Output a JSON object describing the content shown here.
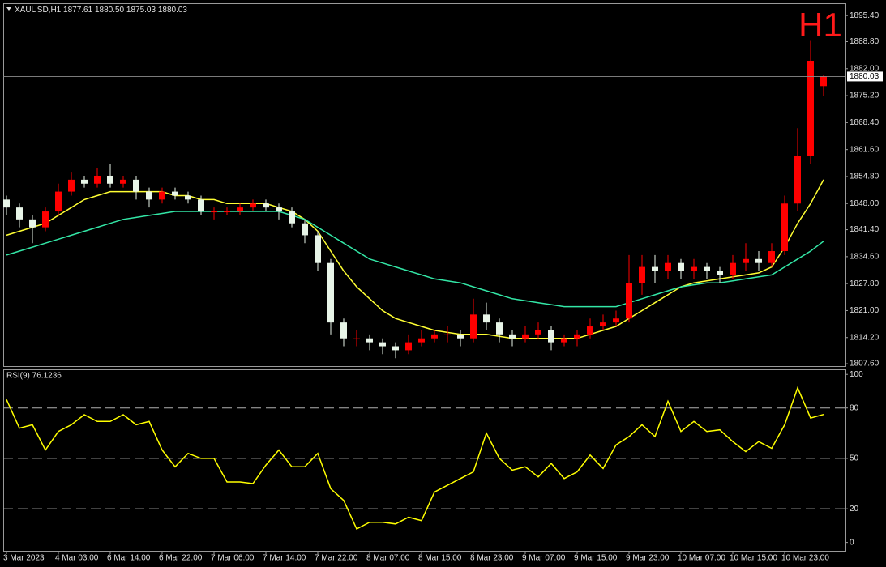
{
  "chart_data": [
    {
      "type": "candlestick",
      "symbol": "XAUUSD,H1",
      "header_ohlc": [
        "1877.61",
        "1880.50",
        "1875.03",
        "1880.03"
      ],
      "timeframe": "H1",
      "categories": [
        "3 Mar 2023",
        null,
        null,
        null,
        "4 Mar 03:00",
        null,
        null,
        null,
        "6 Mar 14:00",
        null,
        null,
        null,
        "6 Mar 22:00",
        null,
        null,
        null,
        "7 Mar 06:00",
        null,
        null,
        null,
        "7 Mar 14:00",
        null,
        null,
        null,
        "7 Mar 22:00",
        null,
        null,
        null,
        "8 Mar 07:00",
        null,
        null,
        null,
        "8 Mar 15:00",
        null,
        null,
        null,
        "8 Mar 23:00",
        null,
        null,
        null,
        "9 Mar 07:00",
        null,
        null,
        null,
        "9 Mar 15:00",
        null,
        null,
        null,
        "9 Mar 23:00",
        null,
        null,
        null,
        "10 Mar 07:00",
        null,
        null,
        null,
        "10 Mar 15:00",
        null,
        null,
        null,
        "10 Mar 23:00",
        null,
        null,
        null
      ],
      "open": [
        1849,
        1847,
        1844,
        1842,
        1846,
        1851,
        1854,
        1853,
        1855,
        1853,
        1854,
        1851,
        1849,
        1851,
        1850,
        1849,
        1846,
        1846,
        1846,
        1847,
        1848,
        1847,
        1846,
        1843,
        1840,
        1833,
        1818,
        1814,
        1814,
        1813,
        1812,
        1811,
        1813,
        1814,
        1815,
        1815,
        1814,
        1820,
        1818,
        1815,
        1814,
        1815,
        1816,
        1813,
        1814,
        1815,
        1817,
        1818,
        1819,
        1828,
        1832,
        1831,
        1833,
        1831,
        1832,
        1831,
        1830,
        1833,
        1834,
        1833,
        1836,
        1848,
        1860,
        1877.61
      ],
      "high": [
        1850,
        1848,
        1845,
        1847,
        1853,
        1856,
        1855,
        1857,
        1858,
        1855,
        1855,
        1852,
        1852,
        1852,
        1851,
        1850,
        1847,
        1847,
        1848,
        1849,
        1849,
        1848,
        1847,
        1844,
        1841,
        1834,
        1819,
        1816,
        1815,
        1814,
        1813,
        1815,
        1816,
        1816,
        1817,
        1816,
        1824,
        1823,
        1819,
        1816,
        1817,
        1818,
        1817,
        1815,
        1816,
        1819,
        1820,
        1821,
        1835,
        1835,
        1835,
        1835,
        1834,
        1834,
        1833,
        1832,
        1835,
        1838,
        1836,
        1838,
        1850,
        1867,
        1889,
        1880.5
      ],
      "low": [
        1845,
        1842,
        1838,
        1841,
        1845,
        1850,
        1852,
        1852,
        1852,
        1852,
        1849,
        1847,
        1848,
        1849,
        1848,
        1845,
        1844,
        1845,
        1845,
        1846,
        1846,
        1844,
        1842,
        1838,
        1831,
        1815,
        1812,
        1812,
        1811,
        1810,
        1809,
        1810,
        1812,
        1813,
        1813,
        1812,
        1813,
        1816,
        1813,
        1812,
        1813,
        1814,
        1811,
        1812,
        1812,
        1814,
        1816,
        1817,
        1818,
        1825,
        1828,
        1829,
        1829,
        1829,
        1829,
        1828,
        1829,
        1831,
        1831,
        1832,
        1835,
        1846,
        1858,
        1875.03
      ],
      "close": [
        1847,
        1844,
        1842,
        1846,
        1851,
        1854,
        1853,
        1855,
        1853,
        1854,
        1851,
        1849,
        1851,
        1850,
        1849,
        1846,
        1846,
        1846,
        1847,
        1848,
        1847,
        1846,
        1843,
        1840,
        1833,
        1818,
        1814,
        1814,
        1813,
        1812,
        1811,
        1813,
        1814,
        1815,
        1815,
        1814,
        1820,
        1818,
        1815,
        1814,
        1815,
        1816,
        1813,
        1814,
        1815,
        1817,
        1818,
        1819,
        1828,
        1832,
        1831,
        1833,
        1831,
        1832,
        1831,
        1830,
        1833,
        1834,
        1833,
        1836,
        1848,
        1860,
        1884,
        1880.03
      ],
      "up_color": "#ff0000",
      "down_color": "#e8f5e8",
      "moving_averages": [
        {
          "color": "#ffff33",
          "values": [
            1840,
            1841,
            1842,
            1843,
            1845,
            1847,
            1849,
            1850,
            1851,
            1851,
            1851,
            1851,
            1851,
            1850,
            1850,
            1849,
            1849,
            1848,
            1848,
            1848,
            1848,
            1847,
            1846,
            1844,
            1841,
            1836,
            1831,
            1827,
            1824,
            1821,
            1819,
            1818,
            1817,
            1816,
            1815.5,
            1815,
            1815,
            1815,
            1814.5,
            1814,
            1814,
            1814,
            1814,
            1814,
            1814,
            1815,
            1816,
            1817,
            1819,
            1821,
            1823,
            1825,
            1827,
            1828,
            1828.5,
            1829,
            1829.5,
            1830,
            1830.5,
            1832,
            1837,
            1843,
            1848,
            1854
          ]
        },
        {
          "color": "#33e6a6",
          "values": [
            1835,
            1836,
            1837,
            1838,
            1839,
            1840,
            1841,
            1842,
            1843,
            1844,
            1844.5,
            1845,
            1845.5,
            1846,
            1846,
            1846,
            1846,
            1846,
            1846,
            1846,
            1846,
            1846,
            1845,
            1844,
            1842,
            1840,
            1838,
            1836,
            1834,
            1833,
            1832,
            1831,
            1830,
            1829,
            1828.5,
            1828,
            1827,
            1826,
            1825,
            1824,
            1823.5,
            1823,
            1822.5,
            1822,
            1822,
            1822,
            1822,
            1822,
            1823,
            1824,
            1825,
            1826,
            1827,
            1827.5,
            1828,
            1828,
            1828.5,
            1829,
            1829.5,
            1830,
            1832,
            1834,
            1836,
            1838.5
          ]
        }
      ],
      "current_price": 1880.03,
      "ylim": [
        1807.0,
        1898.5
      ],
      "yticks": [
        {
          "value": 1895.4,
          "label": "1895.40"
        },
        {
          "value": 1888.8,
          "label": "1888.80"
        },
        {
          "value": 1882.0,
          "label": "1882.00"
        },
        {
          "value": 1875.2,
          "label": "1875.20"
        },
        {
          "value": 1868.4,
          "label": "1868.40"
        },
        {
          "value": 1861.6,
          "label": "1861.60"
        },
        {
          "value": 1854.8,
          "label": "1854.80"
        },
        {
          "value": 1848.0,
          "label": "1848.00"
        },
        {
          "value": 1841.4,
          "label": "1841.40"
        },
        {
          "value": 1834.6,
          "label": "1834.60"
        },
        {
          "value": 1827.8,
          "label": "1827.80"
        },
        {
          "value": 1821.0,
          "label": "1821.00"
        },
        {
          "value": 1814.2,
          "label": "1814.20"
        },
        {
          "value": 1807.6,
          "label": "1807.60"
        }
      ]
    },
    {
      "type": "line",
      "title": "RSI(9) 76.1236",
      "color": "#ffff00",
      "values": [
        85,
        68,
        70,
        55,
        66,
        70,
        76,
        72,
        72,
        76,
        70,
        72,
        55,
        45,
        53,
        50,
        50,
        36,
        36,
        35,
        46,
        55,
        45,
        45,
        53,
        32,
        25,
        8,
        12,
        12,
        11,
        15,
        13,
        30,
        34,
        38,
        42,
        65,
        50,
        43,
        45,
        39,
        47,
        38,
        42,
        52,
        44,
        58,
        63,
        70,
        63,
        84,
        66,
        72,
        66,
        67,
        60,
        54,
        60,
        56,
        70,
        92,
        74,
        76.1236
      ],
      "ylim": [
        -5,
        103
      ],
      "yticks": [
        0,
        20,
        50,
        80,
        100
      ]
    }
  ]
}
